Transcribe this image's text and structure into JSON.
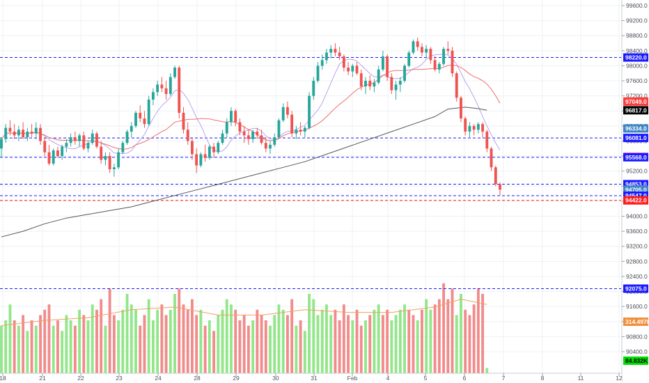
{
  "chart_data": {
    "type": "candlestick",
    "title": "",
    "xlabel": "",
    "ylabel": "",
    "ylim": [
      89920,
      99800
    ],
    "grid": true,
    "y_ticks": [
      90400,
      90800,
      91200,
      91600,
      92000,
      92400,
      92800,
      93200,
      93600,
      94000,
      94400,
      94800,
      95200,
      95600,
      96000,
      96400,
      96800,
      97200,
      97600,
      98000,
      98400,
      98800,
      99200,
      99600
    ],
    "y_tick_labels": [
      "90400.0",
      "90800.0",
      "91200.0",
      "91600.0",
      "92000.0",
      "92400.0",
      "92800.0",
      "93200.0",
      "93600.0",
      "94000.0",
      "94400.0",
      "94800.0",
      "95200.0",
      "95600.0",
      "96000.0",
      "96400.0",
      "96800.0",
      "97200.0",
      "97600.0",
      "98000.0",
      "98400.0",
      "98800.0",
      "99200.0",
      "99600.0"
    ],
    "x_ticks": [
      {
        "label": "18",
        "t": 0
      },
      {
        "label": "21",
        "t": 1
      },
      {
        "label": "22",
        "t": 2
      },
      {
        "label": "23",
        "t": 3
      },
      {
        "label": "24",
        "t": 4
      },
      {
        "label": "28",
        "t": 5
      },
      {
        "label": "29",
        "t": 6
      },
      {
        "label": "30",
        "t": 7
      },
      {
        "label": "31",
        "t": 8
      },
      {
        "label": "Feb",
        "t": 9
      },
      {
        "label": "4",
        "t": 10
      },
      {
        "label": "5",
        "t": 11
      },
      {
        "label": "6",
        "t": 12
      },
      {
        "label": "7",
        "t": 13
      },
      {
        "label": "8",
        "t": 14
      },
      {
        "label": "11",
        "t": 15
      },
      {
        "label": "12",
        "t": 16
      }
    ],
    "levels": [
      {
        "value": 98220.0,
        "label": "98220.0",
        "color": "#1a1aff",
        "box": "#1a1aff",
        "text_color": "#ffffff",
        "line": true
      },
      {
        "value": 97049.0,
        "label": "97049.0",
        "color": "#ff3b3b",
        "box": "#ff3b3b",
        "text_color": "#ffffff",
        "line": false
      },
      {
        "value": 96817.0,
        "label": "96817.0",
        "color": "#000000",
        "box": "#000000",
        "text_color": "#ffffff",
        "line": false
      },
      {
        "value": 96334.0,
        "label": "96334.0",
        "color": "#3d85c6",
        "box": "#3d85c6",
        "text_color": "#ffffff",
        "line": false
      },
      {
        "value": 96081.0,
        "label": "96081.0",
        "color": "#1a1aff",
        "box": "#1a1aff",
        "text_color": "#ffffff",
        "line": true
      },
      {
        "value": 95578.0,
        "label": "95578.0",
        "color": "#ff33ff",
        "box": "#ff33ff",
        "text_color": "#ffffff",
        "line": false
      },
      {
        "value": 95568.0,
        "label": "95568.0",
        "color": "#1a1aff",
        "box": "#1a1aff",
        "text_color": "#ffffff",
        "line": true
      },
      {
        "value": 94853.0,
        "label": "94853.0",
        "color": "#1a1aff",
        "box": "#1a1aff",
        "text_color": "#ffffff",
        "line": true
      },
      {
        "value": 94705.0,
        "label": "94705.0",
        "color": "#3d85c6",
        "box": "#3d85c6",
        "text_color": "#ffffff",
        "line": false
      },
      {
        "value": 94547.0,
        "label": "94547.0",
        "color": "#1a1aff",
        "box": "#1a1aff",
        "text_color": "#ffffff",
        "line": true
      },
      {
        "value": 94422.0,
        "label": "94422.0",
        "color": "#ff1a1a",
        "box": "#ff1a1a",
        "text_color": "#ffffff",
        "line": true
      },
      {
        "value": 92075.0,
        "label": "92075.0",
        "color": "#1a1aff",
        "box": "#1a1aff",
        "text_color": "#ffffff",
        "line": true
      }
    ],
    "volume_labels": [
      {
        "value": 91000,
        "label": "314.497K",
        "box": "#f0903c",
        "text_color": "#ffffff"
      },
      {
        "value": 90280,
        "label": "84.832K",
        "box": "#00dd00",
        "text_color": "#000000"
      }
    ],
    "candles": [
      [
        95800,
        96100,
        95550,
        96050
      ],
      [
        96050,
        96450,
        95950,
        96350
      ],
      [
        96350,
        96550,
        96150,
        96250
      ],
      [
        96250,
        96450,
        96050,
        96150
      ],
      [
        96150,
        96400,
        96000,
        96300
      ],
      [
        96300,
        96500,
        96050,
        96100
      ],
      [
        96100,
        96350,
        96000,
        96250
      ],
      [
        96250,
        96450,
        96100,
        96200
      ],
      [
        96200,
        96500,
        96050,
        96350
      ],
      [
        96350,
        96450,
        95900,
        96000
      ],
      [
        96000,
        96100,
        95600,
        95700
      ],
      [
        95700,
        95900,
        95350,
        95400
      ],
      [
        95400,
        95800,
        95350,
        95750
      ],
      [
        95750,
        95850,
        95550,
        95600
      ],
      [
        95600,
        95900,
        95500,
        95850
      ],
      [
        95850,
        96050,
        95700,
        95950
      ],
      [
        95950,
        96200,
        95850,
        96100
      ],
      [
        96100,
        96250,
        95900,
        96000
      ],
      [
        96000,
        96200,
        95850,
        96150
      ],
      [
        96150,
        96250,
        95750,
        95800
      ],
      [
        95800,
        96000,
        95700,
        95950
      ],
      [
        95950,
        96300,
        95900,
        96200
      ],
      [
        96200,
        96250,
        95800,
        95850
      ],
      [
        95850,
        96000,
        95400,
        95500
      ],
      [
        95500,
        95700,
        95350,
        95600
      ],
      [
        95600,
        95700,
        95150,
        95250
      ],
      [
        95250,
        95400,
        95050,
        95300
      ],
      [
        95300,
        95800,
        95250,
        95700
      ],
      [
        95700,
        96000,
        95650,
        95950
      ],
      [
        95950,
        96300,
        95900,
        96250
      ],
      [
        96250,
        96500,
        96100,
        96400
      ],
      [
        96400,
        96800,
        96350,
        96750
      ],
      [
        96750,
        96950,
        96500,
        96600
      ],
      [
        96600,
        96800,
        96350,
        96450
      ],
      [
        96450,
        97200,
        96400,
        97100
      ],
      [
        97100,
        97400,
        96950,
        97300
      ],
      [
        97300,
        97600,
        97200,
        97500
      ],
      [
        97500,
        97700,
        97300,
        97400
      ],
      [
        97400,
        97600,
        97100,
        97250
      ],
      [
        97250,
        97800,
        97200,
        97700
      ],
      [
        97700,
        98000,
        97650,
        97950
      ],
      [
        97950,
        98000,
        96600,
        96750
      ],
      [
        96750,
        96900,
        96200,
        96300
      ],
      [
        96300,
        96500,
        95900,
        96000
      ],
      [
        96000,
        96100,
        95500,
        95650
      ],
      [
        95650,
        95800,
        95150,
        95350
      ],
      [
        95350,
        95700,
        95300,
        95650
      ],
      [
        95650,
        95900,
        95450,
        95550
      ],
      [
        95550,
        95900,
        95500,
        95850
      ],
      [
        95850,
        95950,
        95550,
        95700
      ],
      [
        95700,
        96000,
        95650,
        95950
      ],
      [
        95950,
        96300,
        95900,
        96200
      ],
      [
        96200,
        96600,
        96100,
        96500
      ],
      [
        96500,
        96900,
        96400,
        96800
      ],
      [
        96800,
        96850,
        96400,
        96500
      ],
      [
        96500,
        96600,
        96150,
        96250
      ],
      [
        96250,
        96400,
        95950,
        96150
      ],
      [
        96150,
        96300,
        95900,
        96050
      ],
      [
        96050,
        96300,
        95950,
        96250
      ],
      [
        96250,
        96350,
        96050,
        96150
      ],
      [
        96150,
        96300,
        95900,
        95950
      ],
      [
        95950,
        96100,
        95700,
        95800
      ],
      [
        95800,
        96000,
        95650,
        95900
      ],
      [
        95900,
        96200,
        95850,
        96100
      ],
      [
        96100,
        96600,
        96050,
        96550
      ],
      [
        96550,
        97000,
        96500,
        96900
      ],
      [
        96900,
        97050,
        96600,
        96700
      ],
      [
        96700,
        96800,
        96100,
        96200
      ],
      [
        96200,
        96400,
        96050,
        96300
      ],
      [
        96300,
        96500,
        96150,
        96250
      ],
      [
        96250,
        96400,
        96100,
        96350
      ],
      [
        96350,
        97300,
        96300,
        97200
      ],
      [
        97200,
        97700,
        97100,
        97600
      ],
      [
        97600,
        98100,
        97550,
        98000
      ],
      [
        98000,
        98300,
        97900,
        98150
      ],
      [
        98150,
        98450,
        98050,
        98350
      ],
      [
        98350,
        98550,
        98200,
        98450
      ],
      [
        98450,
        98600,
        98250,
        98350
      ],
      [
        98350,
        98500,
        98150,
        98250
      ],
      [
        98250,
        98300,
        97850,
        97950
      ],
      [
        97950,
        98100,
        97750,
        97850
      ],
      [
        97850,
        98050,
        97700,
        98000
      ],
      [
        98000,
        98100,
        97750,
        97800
      ],
      [
        97800,
        97900,
        97350,
        97450
      ],
      [
        97450,
        97700,
        97250,
        97600
      ],
      [
        97600,
        97750,
        97350,
        97450
      ],
      [
        97450,
        97650,
        97300,
        97550
      ],
      [
        97550,
        98000,
        97500,
        97900
      ],
      [
        97900,
        98400,
        97850,
        98250
      ],
      [
        98250,
        98300,
        97600,
        97700
      ],
      [
        97700,
        97800,
        97250,
        97350
      ],
      [
        97350,
        97600,
        97100,
        97500
      ],
      [
        97500,
        97700,
        97300,
        97600
      ],
      [
        97600,
        98050,
        97550,
        98000
      ],
      [
        98000,
        98400,
        97950,
        98350
      ],
      [
        98350,
        98700,
        98300,
        98650
      ],
      [
        98650,
        98750,
        98400,
        98500
      ],
      [
        98500,
        98600,
        98250,
        98350
      ],
      [
        98350,
        98550,
        98200,
        98450
      ],
      [
        98450,
        98500,
        98050,
        98150
      ],
      [
        98150,
        98250,
        97850,
        97900
      ],
      [
        97900,
        98100,
        97800,
        98050
      ],
      [
        98050,
        98500,
        98000,
        98450
      ],
      [
        98450,
        98650,
        98300,
        98400
      ],
      [
        98400,
        98500,
        97700,
        97800
      ],
      [
        97800,
        97850,
        97050,
        97150
      ],
      [
        97150,
        97200,
        96500,
        96600
      ],
      [
        96600,
        96650,
        96150,
        96250
      ],
      [
        96250,
        96500,
        96100,
        96400
      ],
      [
        96400,
        96450,
        96150,
        96300
      ],
      [
        96300,
        96500,
        96200,
        96450
      ],
      [
        96450,
        96500,
        96100,
        96250
      ],
      [
        96250,
        96300,
        95700,
        95800
      ],
      [
        95800,
        95850,
        95200,
        95300
      ],
      [
        95300,
        95350,
        94800,
        94850
      ],
      [
        94850,
        94900,
        94550,
        94705
      ]
    ],
    "ma_series": [
      {
        "color": "#aa99ee",
        "period": 8
      },
      {
        "color": "#ee6b6b",
        "period": 20
      },
      {
        "color": "#555555",
        "period": 0,
        "values_hint": "long-term"
      }
    ],
    "long_ma": [
      [
        0,
        93450
      ],
      [
        5,
        93600
      ],
      [
        10,
        93800
      ],
      [
        15,
        93950
      ],
      [
        20,
        94050
      ],
      [
        25,
        94150
      ],
      [
        30,
        94250
      ],
      [
        35,
        94400
      ],
      [
        40,
        94550
      ],
      [
        45,
        94700
      ],
      [
        50,
        94850
      ],
      [
        55,
        95000
      ],
      [
        60,
        95150
      ],
      [
        65,
        95300
      ],
      [
        70,
        95450
      ],
      [
        75,
        95650
      ],
      [
        80,
        95850
      ],
      [
        85,
        96050
      ],
      [
        90,
        96250
      ],
      [
        95,
        96450
      ],
      [
        100,
        96650
      ],
      [
        103,
        96850
      ],
      [
        107,
        96900
      ],
      [
        110,
        96860
      ],
      [
        112,
        96817
      ]
    ],
    "volumes": [
      [
        9,
        0
      ],
      [
        10,
        0
      ],
      [
        13,
        0
      ],
      [
        10,
        1
      ],
      [
        9,
        0
      ],
      [
        11,
        1
      ],
      [
        8,
        0
      ],
      [
        10,
        1
      ],
      [
        9,
        0
      ],
      [
        11,
        1
      ],
      [
        12,
        1
      ],
      [
        13,
        1
      ],
      [
        9,
        0
      ],
      [
        10,
        1
      ],
      [
        8,
        0
      ],
      [
        11,
        0
      ],
      [
        10,
        0
      ],
      [
        9,
        1
      ],
      [
        12,
        0
      ],
      [
        11,
        1
      ],
      [
        10,
        0
      ],
      [
        13,
        0
      ],
      [
        12,
        1
      ],
      [
        14,
        1
      ],
      [
        9,
        0
      ],
      [
        16,
        1
      ],
      [
        11,
        1
      ],
      [
        10,
        0
      ],
      [
        12,
        0
      ],
      [
        15,
        0
      ],
      [
        13,
        0
      ],
      [
        12,
        0
      ],
      [
        9,
        1
      ],
      [
        11,
        1
      ],
      [
        14,
        0
      ],
      [
        10,
        0
      ],
      [
        12,
        0
      ],
      [
        13,
        1
      ],
      [
        11,
        1
      ],
      [
        12,
        0
      ],
      [
        15,
        0
      ],
      [
        16,
        1
      ],
      [
        13,
        1
      ],
      [
        12,
        1
      ],
      [
        14,
        1
      ],
      [
        11,
        1
      ],
      [
        12,
        0
      ],
      [
        9,
        1
      ],
      [
        10,
        0
      ],
      [
        8,
        1
      ],
      [
        11,
        0
      ],
      [
        12,
        0
      ],
      [
        14,
        0
      ],
      [
        13,
        0
      ],
      [
        12,
        1
      ],
      [
        10,
        1
      ],
      [
        11,
        1
      ],
      [
        9,
        1
      ],
      [
        10,
        0
      ],
      [
        12,
        1
      ],
      [
        11,
        1
      ],
      [
        10,
        1
      ],
      [
        9,
        0
      ],
      [
        11,
        0
      ],
      [
        13,
        0
      ],
      [
        12,
        0
      ],
      [
        11,
        1
      ],
      [
        14,
        1
      ],
      [
        9,
        0
      ],
      [
        10,
        1
      ],
      [
        8,
        0
      ],
      [
        15,
        0
      ],
      [
        14,
        0
      ],
      [
        11,
        0
      ],
      [
        12,
        0
      ],
      [
        13,
        0
      ],
      [
        11,
        0
      ],
      [
        12,
        1
      ],
      [
        10,
        1
      ],
      [
        13,
        1
      ],
      [
        11,
        1
      ],
      [
        10,
        0
      ],
      [
        12,
        1
      ],
      [
        9,
        1
      ],
      [
        10,
        0
      ],
      [
        11,
        1
      ],
      [
        12,
        0
      ],
      [
        13,
        0
      ],
      [
        11,
        1
      ],
      [
        12,
        1
      ],
      [
        10,
        0
      ],
      [
        11,
        0
      ],
      [
        12,
        0
      ],
      [
        13,
        0
      ],
      [
        12,
        1
      ],
      [
        11,
        1
      ],
      [
        10,
        0
      ],
      [
        12,
        1
      ],
      [
        14,
        0
      ],
      [
        12,
        0
      ],
      [
        13,
        1
      ],
      [
        14,
        1
      ],
      [
        17,
        1
      ],
      [
        14,
        1
      ],
      [
        16,
        1
      ],
      [
        11,
        0
      ],
      [
        15,
        0
      ],
      [
        12,
        1
      ],
      [
        11,
        1
      ],
      [
        13,
        1
      ],
      [
        16,
        1
      ],
      [
        15,
        1
      ],
      [
        1,
        0
      ]
    ],
    "volume_ma": [
      [
        0,
        9
      ],
      [
        10,
        10
      ],
      [
        20,
        10.5
      ],
      [
        30,
        12
      ],
      [
        40,
        12.5
      ],
      [
        50,
        11
      ],
      [
        60,
        11
      ],
      [
        70,
        12
      ],
      [
        80,
        11.5
      ],
      [
        90,
        11.5
      ],
      [
        100,
        12.5
      ],
      [
        106,
        14
      ],
      [
        112,
        13
      ]
    ]
  }
}
